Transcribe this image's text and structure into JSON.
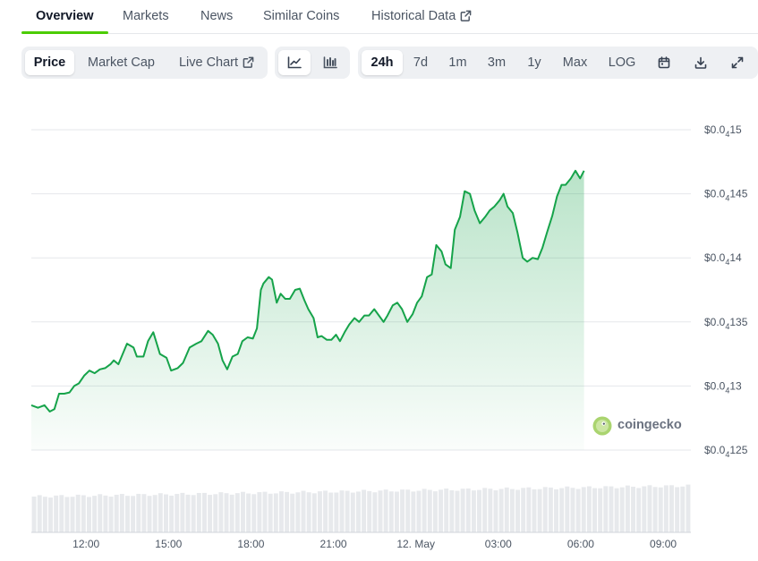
{
  "nav": {
    "tabs": [
      {
        "label": "Overview",
        "active": true
      },
      {
        "label": "Markets"
      },
      {
        "label": "News"
      },
      {
        "label": "Similar Coins"
      },
      {
        "label": "Historical Data",
        "external": true
      }
    ]
  },
  "toolbar": {
    "view_buttons": [
      {
        "label": "Price",
        "active": true
      },
      {
        "label": "Market Cap"
      },
      {
        "label": "Live Chart",
        "external": true
      }
    ],
    "chart_type_buttons": [
      {
        "icon": "line-chart-icon",
        "active": true
      },
      {
        "icon": "candlestick-chart-icon"
      }
    ],
    "range_buttons": [
      {
        "label": "24h",
        "active": true
      },
      {
        "label": "7d"
      },
      {
        "label": "1m"
      },
      {
        "label": "3m"
      },
      {
        "label": "1y"
      },
      {
        "label": "Max"
      },
      {
        "label": "LOG"
      }
    ],
    "action_icons": [
      "calendar-icon",
      "download-icon",
      "fullscreen-icon"
    ]
  },
  "watermark": {
    "text": "coingecko"
  },
  "colors": {
    "line": "#16a34a",
    "accent": "#4bcc00",
    "fill": "#bbf0c8"
  },
  "chart_data": {
    "type": "area",
    "y_axis": {
      "side": "right",
      "ticks": [
        {
          "prefix": "$0.0",
          "sub": "4",
          "suffix": "15",
          "value": 1.5e-05
        },
        {
          "prefix": "$0.0",
          "sub": "4",
          "suffix": "145",
          "value": 1.45e-05
        },
        {
          "prefix": "$0.0",
          "sub": "4",
          "suffix": "14",
          "value": 1.4e-05
        },
        {
          "prefix": "$0.0",
          "sub": "4",
          "suffix": "135",
          "value": 1.35e-05
        },
        {
          "prefix": "$0.0",
          "sub": "4",
          "suffix": "13",
          "value": 1.3e-05
        },
        {
          "prefix": "$0.0",
          "sub": "4",
          "suffix": "125",
          "value": 1.25e-05
        }
      ]
    },
    "x_axis": {
      "ticks": [
        {
          "label": "12:00",
          "t": 0.083
        },
        {
          "label": "15:00",
          "t": 0.208
        },
        {
          "label": "18:00",
          "t": 0.333
        },
        {
          "label": "21:00",
          "t": 0.458
        },
        {
          "label": "12. May",
          "t": 0.583
        },
        {
          "label": "03:00",
          "t": 0.708
        },
        {
          "label": "06:00",
          "t": 0.833
        },
        {
          "label": "09:00",
          "t": 0.958
        }
      ]
    },
    "ylim": [
      1.25e-05,
      1.5e-05
    ],
    "grid": true,
    "series": [
      {
        "points": [
          [
            0.0,
            1.285e-05
          ],
          [
            0.01,
            1.283e-05
          ],
          [
            0.02,
            1.285e-05
          ],
          [
            0.028,
            1.28e-05
          ],
          [
            0.035,
            1.282e-05
          ],
          [
            0.042,
            1.294e-05
          ],
          [
            0.05,
            1.294e-05
          ],
          [
            0.058,
            1.295e-05
          ],
          [
            0.065,
            1.3e-05
          ],
          [
            0.072,
            1.302e-05
          ],
          [
            0.08,
            1.308e-05
          ],
          [
            0.088,
            1.312e-05
          ],
          [
            0.096,
            1.31e-05
          ],
          [
            0.104,
            1.313e-05
          ],
          [
            0.112,
            1.314e-05
          ],
          [
            0.12,
            1.317e-05
          ],
          [
            0.125,
            1.32e-05
          ],
          [
            0.132,
            1.317e-05
          ],
          [
            0.145,
            1.333e-05
          ],
          [
            0.155,
            1.33e-05
          ],
          [
            0.16,
            1.323e-05
          ],
          [
            0.17,
            1.323e-05
          ],
          [
            0.177,
            1.335e-05
          ],
          [
            0.185,
            1.342e-05
          ],
          [
            0.195,
            1.325e-05
          ],
          [
            0.205,
            1.322e-05
          ],
          [
            0.212,
            1.312e-05
          ],
          [
            0.222,
            1.314e-05
          ],
          [
            0.23,
            1.318e-05
          ],
          [
            0.24,
            1.33e-05
          ],
          [
            0.25,
            1.333e-05
          ],
          [
            0.258,
            1.335e-05
          ],
          [
            0.268,
            1.343e-05
          ],
          [
            0.275,
            1.34e-05
          ],
          [
            0.283,
            1.333e-05
          ],
          [
            0.29,
            1.32e-05
          ],
          [
            0.297,
            1.313e-05
          ],
          [
            0.305,
            1.323e-05
          ],
          [
            0.313,
            1.325e-05
          ],
          [
            0.32,
            1.335e-05
          ],
          [
            0.328,
            1.338e-05
          ],
          [
            0.336,
            1.337e-05
          ],
          [
            0.342,
            1.345e-05
          ],
          [
            0.348,
            1.375e-05
          ],
          [
            0.352,
            1.38e-05
          ],
          [
            0.36,
            1.385e-05
          ],
          [
            0.365,
            1.383e-05
          ],
          [
            0.372,
            1.365e-05
          ],
          [
            0.378,
            1.372e-05
          ],
          [
            0.385,
            1.368e-05
          ],
          [
            0.392,
            1.368e-05
          ],
          [
            0.4,
            1.375e-05
          ],
          [
            0.407,
            1.376e-05
          ],
          [
            0.414,
            1.367e-05
          ],
          [
            0.42,
            1.36e-05
          ],
          [
            0.428,
            1.353e-05
          ],
          [
            0.434,
            1.338e-05
          ],
          [
            0.44,
            1.339e-05
          ],
          [
            0.448,
            1.336e-05
          ],
          [
            0.455,
            1.336e-05
          ],
          [
            0.462,
            1.34e-05
          ],
          [
            0.468,
            1.335e-05
          ],
          [
            0.475,
            1.342e-05
          ],
          [
            0.482,
            1.348e-05
          ],
          [
            0.49,
            1.353e-05
          ],
          [
            0.497,
            1.35e-05
          ],
          [
            0.505,
            1.355e-05
          ],
          [
            0.512,
            1.355e-05
          ],
          [
            0.52,
            1.36e-05
          ],
          [
            0.527,
            1.355e-05
          ],
          [
            0.534,
            1.35e-05
          ],
          [
            0.54,
            1.355e-05
          ],
          [
            0.548,
            1.363e-05
          ],
          [
            0.555,
            1.365e-05
          ],
          [
            0.562,
            1.36e-05
          ],
          [
            0.57,
            1.35e-05
          ],
          [
            0.578,
            1.356e-05
          ],
          [
            0.585,
            1.365e-05
          ],
          [
            0.592,
            1.37e-05
          ],
          [
            0.6,
            1.385e-05
          ],
          [
            0.607,
            1.387e-05
          ],
          [
            0.614,
            1.41e-05
          ],
          [
            0.622,
            1.405e-05
          ],
          [
            0.628,
            1.395e-05
          ],
          [
            0.636,
            1.392e-05
          ],
          [
            0.642,
            1.422e-05
          ],
          [
            0.65,
            1.432e-05
          ],
          [
            0.657,
            1.452e-05
          ],
          [
            0.665,
            1.45e-05
          ],
          [
            0.672,
            1.437e-05
          ],
          [
            0.68,
            1.427e-05
          ],
          [
            0.688,
            1.432e-05
          ],
          [
            0.695,
            1.437e-05
          ],
          [
            0.702,
            1.44e-05
          ],
          [
            0.71,
            1.445e-05
          ],
          [
            0.716,
            1.45e-05
          ],
          [
            0.722,
            1.44e-05
          ],
          [
            0.73,
            1.435e-05
          ],
          [
            0.737,
            1.42e-05
          ],
          [
            0.745,
            1.4e-05
          ],
          [
            0.752,
            1.397e-05
          ],
          [
            0.76,
            1.4e-05
          ],
          [
            0.768,
            1.399e-05
          ],
          [
            0.775,
            1.408e-05
          ],
          [
            0.782,
            1.42e-05
          ],
          [
            0.79,
            1.433e-05
          ],
          [
            0.797,
            1.448e-05
          ],
          [
            0.804,
            1.457e-05
          ],
          [
            0.81,
            1.457e-05
          ],
          [
            0.818,
            1.462e-05
          ],
          [
            0.825,
            1.468e-05
          ],
          [
            0.832,
            1.462e-05
          ],
          [
            0.838,
            1.468e-05
          ]
        ]
      }
    ],
    "volume": {
      "bars": 120,
      "note": "relative volume bars along bottom, slowly rising toward right"
    }
  }
}
